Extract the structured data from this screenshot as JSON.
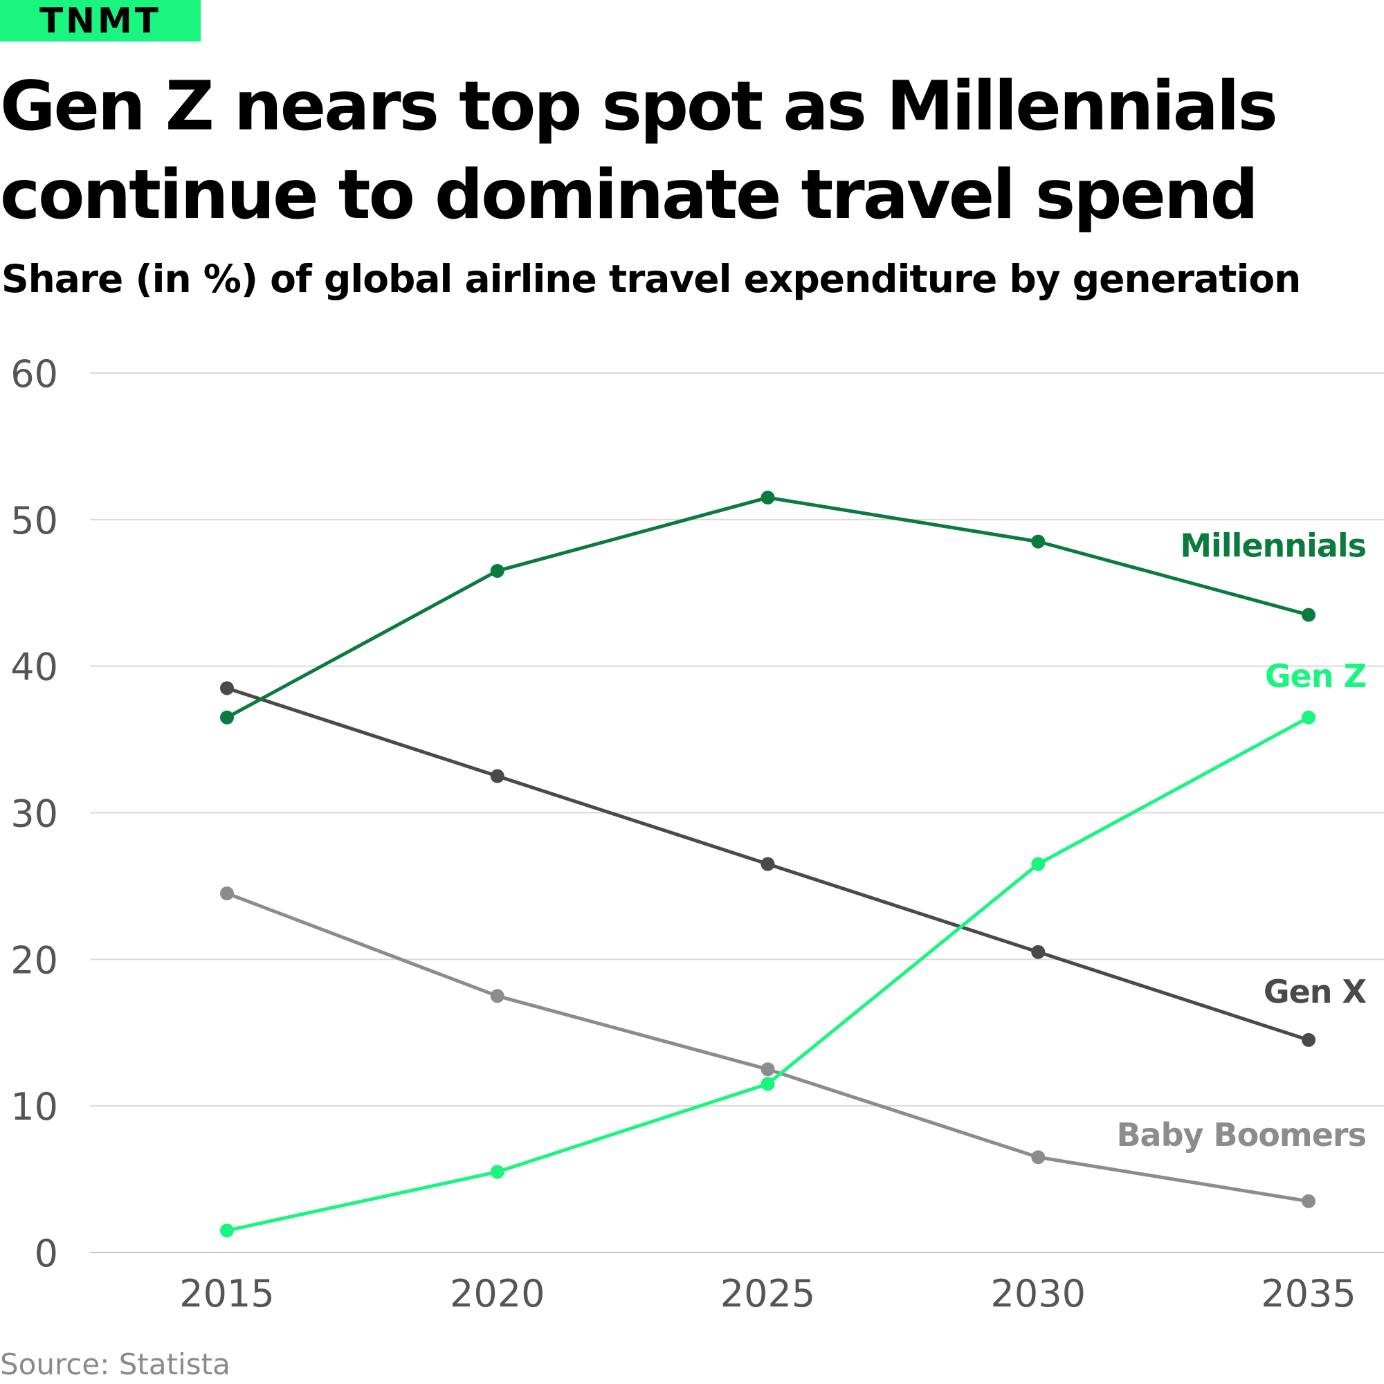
{
  "brand": {
    "logo_text": "TNMT",
    "color": "#19f57f"
  },
  "title": "Gen Z nears top spot as Millennials continue to dominate travel spend",
  "subtitle": "Share (in %) of global airline travel expenditure by generation",
  "source": "Source: Statista",
  "chart_data": {
    "type": "line",
    "title": "Gen Z nears top spot as Millennials continue to dominate travel spend",
    "subtitle": "Share (in %) of global airline travel expenditure by generation",
    "x": [
      2015,
      2020,
      2025,
      2030,
      2035
    ],
    "x_tick_labels": [
      "2015",
      "2020",
      "2025",
      "2030",
      "2035"
    ],
    "y_ticks": [
      0,
      10,
      20,
      30,
      40,
      50,
      60
    ],
    "y_tick_labels": [
      "0",
      "10",
      "20",
      "30",
      "40",
      "50",
      "60"
    ],
    "ylim": [
      0,
      60
    ],
    "grid": "horizontal",
    "legend": "direct labels at right end of lines",
    "series": [
      {
        "name": "Millennials",
        "color": "#0a7a3e",
        "values": [
          36.5,
          46.5,
          51.5,
          48.5,
          43.5
        ]
      },
      {
        "name": "Gen Z",
        "color": "#19f57f",
        "values": [
          1.5,
          5.5,
          11.5,
          26.5,
          36.5
        ]
      },
      {
        "name": "Gen X",
        "color": "#4a4a4a",
        "values": [
          38.5,
          32.5,
          26.5,
          20.5,
          14.5
        ]
      },
      {
        "name": "Baby Boomers",
        "color": "#8c8c8c",
        "values": [
          24.5,
          17.5,
          12.5,
          6.5,
          3.5
        ]
      }
    ]
  }
}
